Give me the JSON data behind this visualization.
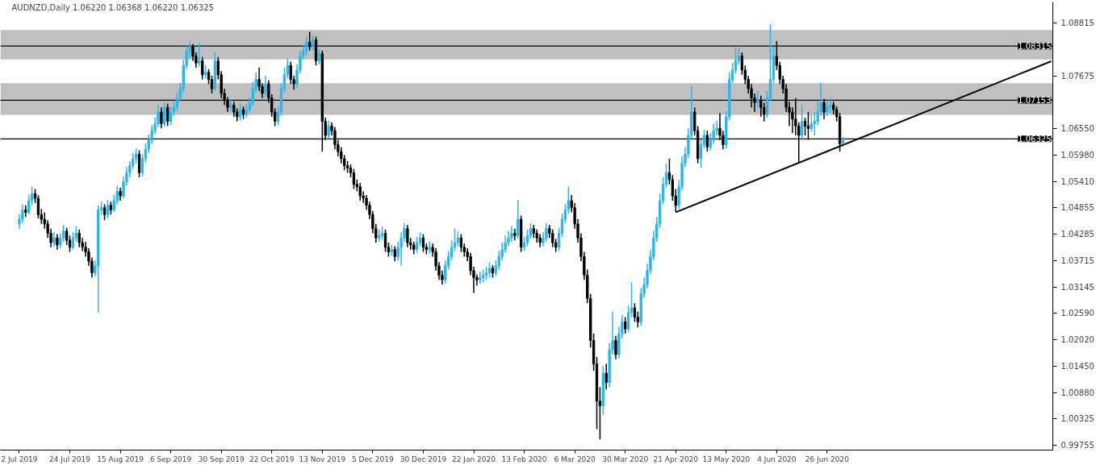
{
  "chart_data": {
    "type": "candlestick",
    "title": "AUDNZD,Daily  1.06220 1.06368 1.06220 1.06325",
    "categories": [
      "2 Jul 2019",
      null,
      null,
      null,
      null,
      null,
      null,
      null,
      null,
      null,
      null,
      null,
      null,
      null,
      null,
      null,
      "24 Jul 2019",
      null,
      null,
      null,
      null,
      null,
      null,
      null,
      null,
      null,
      null,
      null,
      null,
      null,
      null,
      null,
      "15 Aug 2019",
      null,
      null,
      null,
      null,
      null,
      null,
      null,
      null,
      null,
      null,
      null,
      null,
      null,
      null,
      null,
      "6 Sep 2019",
      null,
      null,
      null,
      null,
      null,
      null,
      null,
      null,
      null,
      null,
      null,
      null,
      null,
      null,
      null,
      "30 Sep 2019",
      null,
      null,
      null,
      null,
      null,
      null,
      null,
      null,
      null,
      null,
      null,
      null,
      null,
      null,
      null,
      "22 Oct 2019",
      null,
      null,
      null,
      null,
      null,
      null,
      null,
      null,
      null,
      null,
      null,
      null,
      null,
      null,
      null,
      "13 Nov 2019",
      null,
      null,
      null,
      null,
      null,
      null,
      null,
      null,
      null,
      null,
      null,
      null,
      null,
      null,
      null,
      "5 Dec 2019",
      null,
      null,
      null,
      null,
      null,
      null,
      null,
      null,
      null,
      null,
      null,
      null,
      null,
      null,
      null,
      "30 Dec 2019",
      null,
      null,
      null,
      null,
      null,
      null,
      null,
      null,
      null,
      null,
      null,
      null,
      null,
      null,
      null,
      "22 Jan 2020",
      null,
      null,
      null,
      null,
      null,
      null,
      null,
      null,
      null,
      null,
      null,
      null,
      null,
      null,
      null,
      "13 Feb 2020",
      null,
      null,
      null,
      null,
      null,
      null,
      null,
      null,
      null,
      null,
      null,
      null,
      null,
      null,
      null,
      "6 Mar 2020",
      null,
      null,
      null,
      null,
      null,
      null,
      null,
      null,
      null,
      null,
      null,
      null,
      null,
      null,
      null,
      "30 Mar 2020",
      null,
      null,
      null,
      null,
      null,
      null,
      null,
      null,
      null,
      null,
      null,
      null,
      null,
      null,
      null,
      "21 Apr 2020",
      null,
      null,
      null,
      null,
      null,
      null,
      null,
      null,
      null,
      null,
      null,
      null,
      null,
      null,
      null,
      "13 May 2020",
      null,
      null,
      null,
      null,
      null,
      null,
      null,
      null,
      null,
      null,
      null,
      null,
      null,
      null,
      null,
      "4 Jun 2020",
      null,
      null,
      null,
      null,
      null,
      null,
      null,
      null,
      null,
      null,
      null,
      null,
      null,
      null,
      null,
      "26 Jun 2020",
      null,
      null,
      null,
      null,
      null,
      null,
      null,
      null,
      null,
      null,
      null,
      null,
      null,
      null,
      null,
      null,
      null,
      null,
      null,
      null,
      null,
      null,
      null,
      null,
      null,
      null,
      null,
      null,
      null,
      null,
      null,
      null,
      null,
      null,
      null,
      null,
      null,
      null,
      null,
      null,
      null,
      null,
      null,
      null,
      null,
      null,
      null,
      null,
      null,
      null,
      null,
      null,
      null,
      null,
      null,
      null,
      null,
      null,
      null,
      null,
      null,
      null,
      null,
      null,
      null,
      null,
      null,
      null,
      null,
      null,
      null
    ],
    "ohlc": [
      [
        1.045,
        1.047,
        1.044,
        1.046
      ],
      [
        1.046,
        1.0492,
        1.0452,
        1.048
      ],
      [
        1.048,
        1.049,
        1.0465,
        1.0475
      ],
      [
        1.0475,
        1.0512,
        1.047,
        1.05
      ],
      [
        1.05,
        1.053,
        1.049,
        1.0515
      ],
      [
        1.0515,
        1.0525,
        1.0495,
        1.0505
      ],
      [
        1.0505,
        1.0512,
        1.0462,
        1.047
      ],
      [
        1.047,
        1.0482,
        1.045,
        1.046
      ],
      [
        1.046,
        1.0475,
        1.044,
        1.045
      ],
      [
        1.045,
        1.0458,
        1.042,
        1.043
      ],
      [
        1.043,
        1.044,
        1.04,
        1.041
      ],
      [
        1.041,
        1.0432,
        1.0402,
        1.042
      ],
      [
        1.042,
        1.0428,
        1.0395,
        1.0405
      ],
      [
        1.0405,
        1.043,
        1.0398,
        1.042
      ],
      [
        1.042,
        1.0448,
        1.0412,
        1.0435
      ],
      [
        1.0435,
        1.0442,
        1.0405,
        1.0415
      ],
      [
        1.0415,
        1.0425,
        1.039,
        1.04
      ],
      [
        1.04,
        1.0432,
        1.0395,
        1.042
      ],
      [
        1.042,
        1.0445,
        1.0412,
        1.043
      ],
      [
        1.043,
        1.0438,
        1.04,
        1.041
      ],
      [
        1.041,
        1.042,
        1.0392,
        1.04
      ],
      [
        1.04,
        1.0412,
        1.038,
        1.039
      ],
      [
        1.039,
        1.0398,
        1.036,
        1.037
      ],
      [
        1.037,
        1.0378,
        1.0335,
        1.0345
      ],
      [
        1.0345,
        1.0372,
        1.0338,
        1.036
      ],
      [
        1.036,
        1.049,
        1.026,
        1.048
      ],
      [
        1.048,
        1.0498,
        1.047,
        1.0485
      ],
      [
        1.0485,
        1.0492,
        1.0458,
        1.047
      ],
      [
        1.047,
        1.0502,
        1.0462,
        1.049
      ],
      [
        1.049,
        1.0498,
        1.047,
        1.048
      ],
      [
        1.048,
        1.0512,
        1.0475,
        1.05
      ],
      [
        1.05,
        1.0532,
        1.0492,
        1.052
      ],
      [
        1.052,
        1.0528,
        1.05,
        1.051
      ],
      [
        1.051,
        1.0552,
        1.0505,
        1.054
      ],
      [
        1.054,
        1.0572,
        1.0532,
        1.056
      ],
      [
        1.056,
        1.0585,
        1.055,
        1.0575
      ],
      [
        1.0575,
        1.0602,
        1.0568,
        1.059
      ],
      [
        1.059,
        1.0612,
        1.058,
        1.06
      ],
      [
        1.06,
        1.0608,
        1.055,
        1.056
      ],
      [
        1.056,
        1.06,
        1.0552,
        1.059
      ],
      [
        1.059,
        1.0622,
        1.0582,
        1.061
      ],
      [
        1.061,
        1.0642,
        1.0602,
        1.063
      ],
      [
        1.063,
        1.0662,
        1.0622,
        1.065
      ],
      [
        1.065,
        1.0678,
        1.0642,
        1.0665
      ],
      [
        1.0665,
        1.0705,
        1.0658,
        1.069
      ],
      [
        1.069,
        1.07,
        1.0655,
        1.0665
      ],
      [
        1.0665,
        1.0712,
        1.0658,
        1.07
      ],
      [
        1.07,
        1.0708,
        1.066,
        1.067
      ],
      [
        1.067,
        1.0702,
        1.0662,
        1.069
      ],
      [
        1.069,
        1.0712,
        1.0682,
        1.07
      ],
      [
        1.07,
        1.0732,
        1.0692,
        1.072
      ],
      [
        1.072,
        1.0752,
        1.0712,
        1.074
      ],
      [
        1.074,
        1.0802,
        1.0732,
        1.079
      ],
      [
        1.079,
        1.0832,
        1.0782,
        1.082
      ],
      [
        1.082,
        1.0842,
        1.0805,
        1.083
      ],
      [
        1.083,
        1.0836,
        1.08,
        1.081
      ],
      [
        1.081,
        1.0818,
        1.0785,
        1.0795
      ],
      [
        1.0795,
        1.0838,
        1.0788,
        1.08
      ],
      [
        1.08,
        1.0808,
        1.076,
        1.077
      ],
      [
        1.077,
        1.079,
        1.0762,
        1.0775
      ],
      [
        1.0775,
        1.0782,
        1.075,
        1.076
      ],
      [
        1.076,
        1.0768,
        1.073,
        1.074
      ],
      [
        1.074,
        1.0818,
        1.0735,
        1.08
      ],
      [
        1.08,
        1.0808,
        1.076,
        1.077
      ],
      [
        1.077,
        1.0778,
        1.072,
        1.073
      ],
      [
        1.073,
        1.074,
        1.0705,
        1.0715
      ],
      [
        1.0715,
        1.0722,
        1.069,
        1.07
      ],
      [
        1.07,
        1.0718,
        1.0692,
        1.0705
      ],
      [
        1.0705,
        1.0712,
        1.068,
        1.069
      ],
      [
        1.069,
        1.0698,
        1.067,
        1.068
      ],
      [
        1.068,
        1.0708,
        1.0672,
        1.0695
      ],
      [
        1.0695,
        1.0702,
        1.0675,
        1.0685
      ],
      [
        1.0685,
        1.0708,
        1.0678,
        1.0695
      ],
      [
        1.0695,
        1.0722,
        1.0688,
        1.071
      ],
      [
        1.071,
        1.0755,
        1.0702,
        1.074
      ],
      [
        1.074,
        1.0775,
        1.0732,
        1.076
      ],
      [
        1.076,
        1.0785,
        1.0735,
        1.0745
      ],
      [
        1.0745,
        1.0752,
        1.072,
        1.073
      ],
      [
        1.073,
        1.0768,
        1.0722,
        1.075
      ],
      [
        1.075,
        1.0758,
        1.071,
        1.072
      ],
      [
        1.072,
        1.0728,
        1.068,
        1.069
      ],
      [
        1.069,
        1.0698,
        1.066,
        1.067
      ],
      [
        1.067,
        1.0702,
        1.0662,
        1.069
      ],
      [
        1.069,
        1.0752,
        1.0682,
        1.074
      ],
      [
        1.074,
        1.0785,
        1.0732,
        1.077
      ],
      [
        1.077,
        1.0805,
        1.0762,
        1.079
      ],
      [
        1.079,
        1.0798,
        1.075,
        1.076
      ],
      [
        1.076,
        1.0768,
        1.0738,
        1.075
      ],
      [
        1.075,
        1.0792,
        1.0742,
        1.078
      ],
      [
        1.078,
        1.0822,
        1.0772,
        1.081
      ],
      [
        1.081,
        1.0832,
        1.0802,
        1.082
      ],
      [
        1.082,
        1.0852,
        1.0812,
        1.084
      ],
      [
        1.084,
        1.0862,
        1.0822,
        1.083
      ],
      [
        1.083,
        1.0855,
        1.0822,
        1.0845
      ],
      [
        1.0845,
        1.0852,
        1.079,
        1.08
      ],
      [
        1.08,
        1.0825,
        1.0792,
        1.0815
      ],
      [
        1.0815,
        1.0822,
        1.0605,
        1.067
      ],
      [
        1.067,
        1.0678,
        1.063,
        1.064
      ],
      [
        1.064,
        1.0672,
        1.0632,
        1.066
      ],
      [
        1.066,
        1.0668,
        1.064,
        1.065
      ],
      [
        1.065,
        1.0658,
        1.061,
        1.062
      ],
      [
        1.062,
        1.063,
        1.0595,
        1.0605
      ],
      [
        1.0605,
        1.0615,
        1.058,
        1.059
      ],
      [
        1.059,
        1.0598,
        1.0565,
        1.0575
      ],
      [
        1.0575,
        1.0585,
        1.056,
        1.057
      ],
      [
        1.057,
        1.0578,
        1.055,
        1.056
      ],
      [
        1.056,
        1.0568,
        1.0525,
        1.0535
      ],
      [
        1.0535,
        1.0545,
        1.052,
        1.053
      ],
      [
        1.053,
        1.0538,
        1.05,
        1.051
      ],
      [
        1.051,
        1.052,
        1.0495,
        1.0505
      ],
      [
        1.0505,
        1.0512,
        1.048,
        1.049
      ],
      [
        1.049,
        1.0498,
        1.046,
        1.047
      ],
      [
        1.047,
        1.0478,
        1.043,
        1.044
      ],
      [
        1.044,
        1.045,
        1.041,
        1.042
      ],
      [
        1.042,
        1.0438,
        1.0412,
        1.0425
      ],
      [
        1.0425,
        1.0445,
        1.0415,
        1.043
      ],
      [
        1.043,
        1.0438,
        1.039,
        1.04
      ],
      [
        1.04,
        1.041,
        1.038,
        1.039
      ],
      [
        1.039,
        1.0405,
        1.0382,
        1.0395
      ],
      [
        1.0395,
        1.0402,
        1.037,
        1.038
      ],
      [
        1.038,
        1.0412,
        1.0372,
        1.04
      ],
      [
        1.04,
        1.0432,
        1.0361,
        1.042
      ],
      [
        1.042,
        1.0452,
        1.0412,
        1.044
      ],
      [
        1.044,
        1.0448,
        1.04,
        1.041
      ],
      [
        1.041,
        1.042,
        1.0395,
        1.0405
      ],
      [
        1.0405,
        1.0412,
        1.0385,
        1.0395
      ],
      [
        1.0395,
        1.0422,
        1.0388,
        1.041
      ],
      [
        1.041,
        1.0432,
        1.0402,
        1.042
      ],
      [
        1.042,
        1.0428,
        1.039,
        1.04
      ],
      [
        1.04,
        1.0408,
        1.0385,
        1.0395
      ],
      [
        1.0395,
        1.0412,
        1.0388,
        1.04
      ],
      [
        1.04,
        1.0408,
        1.038,
        1.039
      ],
      [
        1.039,
        1.0398,
        1.035,
        1.036
      ],
      [
        1.036,
        1.0368,
        1.033,
        1.034
      ],
      [
        1.034,
        1.035,
        1.032,
        1.033
      ],
      [
        1.033,
        1.0372,
        1.0322,
        1.036
      ],
      [
        1.036,
        1.0392,
        1.0352,
        1.038
      ],
      [
        1.038,
        1.0415,
        1.0372,
        1.04
      ],
      [
        1.04,
        1.044,
        1.0392,
        1.041
      ],
      [
        1.041,
        1.0435,
        1.0402,
        1.042
      ],
      [
        1.042,
        1.0428,
        1.039,
        1.04
      ],
      [
        1.04,
        1.0408,
        1.038,
        1.039
      ],
      [
        1.039,
        1.0398,
        1.037,
        1.038
      ],
      [
        1.038,
        1.0388,
        1.034,
        1.035
      ],
      [
        1.035,
        1.0358,
        1.0302,
        1.0335
      ],
      [
        1.0335,
        1.0342,
        1.0318,
        1.033
      ],
      [
        1.033,
        1.0348,
        1.0322,
        1.0335
      ],
      [
        1.0335,
        1.0352,
        1.0325,
        1.034
      ],
      [
        1.034,
        1.0358,
        1.033,
        1.0345
      ],
      [
        1.0345,
        1.0368,
        1.0335,
        1.0355
      ],
      [
        1.0355,
        1.0362,
        1.0335,
        1.0345
      ],
      [
        1.0345,
        1.0372,
        1.0338,
        1.036
      ],
      [
        1.036,
        1.0392,
        1.0352,
        1.038
      ],
      [
        1.038,
        1.041,
        1.0372,
        1.0395
      ],
      [
        1.0395,
        1.0425,
        1.0388,
        1.041
      ],
      [
        1.041,
        1.0435,
        1.0402,
        1.042
      ],
      [
        1.042,
        1.0445,
        1.0412,
        1.043
      ],
      [
        1.043,
        1.044,
        1.0415,
        1.0425
      ],
      [
        1.0425,
        1.0501,
        1.0418,
        1.046
      ],
      [
        1.046,
        1.0468,
        1.039,
        1.04
      ],
      [
        1.04,
        1.0422,
        1.0392,
        1.041
      ],
      [
        1.041,
        1.0438,
        1.0402,
        1.0425
      ],
      [
        1.0425,
        1.0452,
        1.0418,
        1.044
      ],
      [
        1.044,
        1.0448,
        1.042,
        1.043
      ],
      [
        1.043,
        1.0438,
        1.041,
        1.042
      ],
      [
        1.042,
        1.0428,
        1.04,
        1.041
      ],
      [
        1.041,
        1.0432,
        1.0402,
        1.042
      ],
      [
        1.042,
        1.0452,
        1.0412,
        1.044
      ],
      [
        1.044,
        1.0448,
        1.042,
        1.043
      ],
      [
        1.043,
        1.0438,
        1.04,
        1.041
      ],
      [
        1.041,
        1.0418,
        1.039,
        1.04
      ],
      [
        1.04,
        1.0442,
        1.0392,
        1.043
      ],
      [
        1.043,
        1.0472,
        1.0422,
        1.046
      ],
      [
        1.046,
        1.0492,
        1.0452,
        1.048
      ],
      [
        1.048,
        1.053,
        1.0472,
        1.05
      ],
      [
        1.05,
        1.0512,
        1.0475,
        1.0485
      ],
      [
        1.0485,
        1.0495,
        1.044,
        1.045
      ],
      [
        1.045,
        1.046,
        1.041,
        1.042
      ],
      [
        1.042,
        1.043,
        1.037,
        1.038
      ],
      [
        1.038,
        1.039,
        1.033,
        1.034
      ],
      [
        1.034,
        1.0352,
        1.028,
        1.029
      ],
      [
        1.029,
        1.03,
        1.0185,
        1.02
      ],
      [
        1.02,
        1.0215,
        1.0135,
        1.015
      ],
      [
        1.015,
        1.0165,
        1.001,
        1.007
      ],
      [
        1.007,
        1.01,
        0.9988,
        1.006
      ],
      [
        1.006,
        1.0145,
        1.004,
        1.013
      ],
      [
        1.013,
        1.015,
        1.0095,
        1.011
      ],
      [
        1.011,
        1.0195,
        1.01,
        1.018
      ],
      [
        1.018,
        1.0262,
        1.017,
        1.02
      ],
      [
        1.02,
        1.021,
        1.016,
        1.017
      ],
      [
        1.017,
        1.023,
        1.0162,
        1.0215
      ],
      [
        1.0215,
        1.0255,
        1.0205,
        1.024
      ],
      [
        1.024,
        1.025,
        1.0215,
        1.0225
      ],
      [
        1.0225,
        1.0275,
        1.0218,
        1.026
      ],
      [
        1.026,
        1.0325,
        1.025,
        1.027
      ],
      [
        1.027,
        1.028,
        1.024,
        1.025
      ],
      [
        1.025,
        1.0262,
        1.0228,
        1.024
      ],
      [
        1.024,
        1.0312,
        1.0232,
        1.03
      ],
      [
        1.03,
        1.0335,
        1.0292,
        1.032
      ],
      [
        1.032,
        1.0365,
        1.0312,
        1.035
      ],
      [
        1.035,
        1.0395,
        1.0342,
        1.038
      ],
      [
        1.038,
        1.0435,
        1.0372,
        1.042
      ],
      [
        1.042,
        1.0465,
        1.0412,
        1.045
      ],
      [
        1.045,
        1.0515,
        1.0442,
        1.05
      ],
      [
        1.05,
        1.055,
        1.0492,
        1.0535
      ],
      [
        1.0535,
        1.058,
        1.0528,
        1.056
      ],
      [
        1.056,
        1.059,
        1.0535,
        1.0545
      ],
      [
        1.0545,
        1.0555,
        1.05,
        1.051
      ],
      [
        1.051,
        1.0525,
        1.0475,
        1.049
      ],
      [
        1.049,
        1.0545,
        1.0482,
        1.053
      ],
      [
        1.053,
        1.0595,
        1.0522,
        1.058
      ],
      [
        1.058,
        1.0615,
        1.0572,
        1.06
      ],
      [
        1.06,
        1.0655,
        1.0592,
        1.064
      ],
      [
        1.064,
        1.0746,
        1.0632,
        1.069
      ],
      [
        1.069,
        1.07,
        1.064,
        1.065
      ],
      [
        1.065,
        1.066,
        1.058,
        1.059
      ],
      [
        1.059,
        1.0632,
        1.057,
        1.062
      ],
      [
        1.062,
        1.0652,
        1.0612,
        1.064
      ],
      [
        1.064,
        1.065,
        1.0605,
        1.0615
      ],
      [
        1.0615,
        1.0645,
        1.0608,
        1.063
      ],
      [
        1.063,
        1.0665,
        1.0622,
        1.065
      ],
      [
        1.065,
        1.0672,
        1.064,
        1.0655
      ],
      [
        1.0655,
        1.0688,
        1.063,
        1.064
      ],
      [
        1.064,
        1.065,
        1.061,
        1.062
      ],
      [
        1.062,
        1.0692,
        1.0612,
        1.068
      ],
      [
        1.068,
        1.0775,
        1.0672,
        1.076
      ],
      [
        1.076,
        1.0795,
        1.0752,
        1.078
      ],
      [
        1.078,
        1.0828,
        1.0772,
        1.08
      ],
      [
        1.08,
        1.0828,
        1.0792,
        1.081
      ],
      [
        1.081,
        1.0818,
        1.077,
        1.078
      ],
      [
        1.078,
        1.079,
        1.075,
        1.076
      ],
      [
        1.076,
        1.0768,
        1.073,
        1.074
      ],
      [
        1.074,
        1.075,
        1.07,
        1.072
      ],
      [
        1.072,
        1.073,
        1.069,
        1.071
      ],
      [
        1.071,
        1.0735,
        1.07,
        1.0715
      ],
      [
        1.0715,
        1.0725,
        1.068,
        1.07
      ],
      [
        1.07,
        1.071,
        1.067,
        1.0685
      ],
      [
        1.0685,
        1.0735,
        1.0678,
        1.072
      ],
      [
        1.072,
        1.0879,
        1.0712,
        1.076
      ],
      [
        1.076,
        1.083,
        1.0752,
        1.081
      ],
      [
        1.081,
        1.0842,
        1.078,
        1.079
      ],
      [
        1.079,
        1.0798,
        1.075,
        1.076
      ],
      [
        1.076,
        1.0768,
        1.073,
        1.074
      ],
      [
        1.074,
        1.075,
        1.069,
        1.07
      ],
      [
        1.07,
        1.0712,
        1.066,
        1.069
      ],
      [
        1.069,
        1.07,
        1.0645,
        1.0675
      ],
      [
        1.0675,
        1.072,
        1.064,
        1.066
      ],
      [
        1.066,
        1.0668,
        1.0581,
        1.064
      ],
      [
        1.064,
        1.0705,
        1.0632,
        1.067
      ],
      [
        1.067,
        1.0678,
        1.064,
        1.066
      ],
      [
        1.066,
        1.069,
        1.063,
        1.0655
      ],
      [
        1.0655,
        1.0685,
        1.0648,
        1.0665
      ],
      [
        1.0665,
        1.069,
        1.064,
        1.067
      ],
      [
        1.067,
        1.0712,
        1.0662,
        1.069
      ],
      [
        1.069,
        1.0753,
        1.0682,
        1.071
      ],
      [
        1.071,
        1.0718,
        1.0675,
        1.069
      ],
      [
        1.069,
        1.0715,
        1.0682,
        1.07
      ],
      [
        1.07,
        1.072,
        1.0688,
        1.0705
      ],
      [
        1.0705,
        1.0712,
        1.0685,
        1.0695
      ],
      [
        1.0695,
        1.0702,
        1.067,
        1.068
      ],
      [
        1.068,
        1.0688,
        1.0605,
        1.0622
      ],
      [
        1.0622,
        1.06368,
        1.0622,
        1.06325
      ],
      null,
      null,
      null,
      null,
      null,
      null,
      null,
      null,
      null,
      null,
      null,
      null,
      null,
      null,
      null,
      null,
      null,
      null,
      null,
      null,
      null,
      null,
      null,
      null,
      null,
      null,
      null,
      null,
      null,
      null,
      null,
      null,
      null,
      null,
      null,
      null,
      null,
      null,
      null,
      null,
      null,
      null,
      null,
      null,
      null,
      null,
      null,
      null,
      null,
      null,
      null,
      null,
      null,
      null,
      null,
      null,
      null,
      null,
      null,
      null,
      null,
      null,
      null,
      null,
      null,
      null
    ],
    "series": [
      {
        "type": "line",
        "values": [
          null,
          null,
          null,
          null,
          null,
          null,
          null,
          null,
          null,
          null,
          null,
          null,
          null,
          null,
          null,
          null,
          null,
          null,
          null,
          null,
          null,
          null,
          null,
          null,
          null,
          null,
          null,
          null,
          null,
          null,
          null,
          null,
          null,
          null,
          null,
          null,
          null,
          null,
          null,
          null,
          null,
          null,
          null,
          null,
          null,
          null,
          null,
          null,
          null,
          null,
          null,
          null,
          null,
          null,
          null,
          null,
          null,
          null,
          null,
          null,
          null,
          null,
          null,
          null,
          null,
          null,
          null,
          null,
          null,
          null,
          null,
          null,
          null,
          null,
          null,
          null,
          null,
          null,
          null,
          null,
          null,
          null,
          null,
          null,
          null,
          null,
          null,
          null,
          null,
          null,
          null,
          null,
          null,
          null,
          null,
          null,
          null,
          null,
          null,
          null,
          null,
          null,
          null,
          null,
          null,
          null,
          null,
          null,
          null,
          null,
          null,
          null,
          null,
          null,
          null,
          null,
          null,
          null,
          null,
          null,
          null,
          null,
          null,
          null,
          null,
          null,
          null,
          null,
          null,
          null,
          null,
          null,
          null,
          null,
          null,
          null,
          null,
          null,
          null,
          null,
          null,
          null,
          null,
          null,
          null,
          null,
          null,
          null,
          null,
          null,
          null,
          null,
          null,
          null,
          null,
          null,
          null,
          null,
          null,
          null,
          null,
          null,
          null,
          null,
          null,
          null,
          null,
          null,
          null,
          null,
          null,
          null,
          null,
          null,
          null,
          null,
          null,
          null,
          null,
          null,
          null,
          null,
          null,
          null,
          null,
          null,
          null,
          null,
          null,
          null,
          null,
          null,
          null,
          null,
          null,
          null,
          null,
          null,
          null,
          null,
          null,
          null,
          null,
          null,
          null,
          null,
          null,
          null,
          1.0475,
          null,
          null,
          null,
          null,
          null,
          null,
          null,
          null,
          null,
          null,
          null,
          null,
          null,
          null,
          null,
          null,
          null,
          null,
          null,
          null,
          null,
          null,
          null,
          null,
          null,
          null,
          null,
          null,
          null,
          null,
          null,
          null,
          null,
          null,
          null,
          null,
          null,
          null,
          null,
          null,
          null,
          null,
          null,
          null,
          null,
          null,
          null,
          null,
          null,
          null,
          null,
          null,
          null,
          null,
          null,
          null,
          null,
          null,
          null,
          null,
          null,
          null,
          null,
          null,
          null,
          null,
          null,
          null,
          null,
          null,
          null,
          null,
          null,
          null,
          null,
          null,
          null,
          null,
          null,
          null,
          null,
          null,
          null,
          null,
          null,
          null,
          null,
          null,
          null,
          null,
          null,
          null,
          null,
          null,
          null,
          null,
          null,
          null,
          null,
          null,
          null,
          null,
          null,
          null,
          null,
          null,
          null,
          null,
          null,
          null,
          null,
          null,
          null,
          null,
          null,
          null,
          null,
          null,
          1.0799
        ],
        "color": "#000000"
      }
    ],
    "ylim": [
      0.9965,
      1.0926
    ],
    "yticks": [
      {
        "value": 1.08815,
        "label": "1.08815"
      },
      {
        "value": 1.07675,
        "label": "1.07675"
      },
      {
        "value": 1.0655,
        "label": "1.06550"
      },
      {
        "value": 1.0598,
        "label": "1.05980"
      },
      {
        "value": 1.0541,
        "label": "1.05410"
      },
      {
        "value": 1.04855,
        "label": "1.04855"
      },
      {
        "value": 1.04285,
        "label": "1.04285"
      },
      {
        "value": 1.03715,
        "label": "1.03715"
      },
      {
        "value": 1.03145,
        "label": "1.03145"
      },
      {
        "value": 1.0259,
        "label": "1.02590"
      },
      {
        "value": 1.0202,
        "label": "1.02020"
      },
      {
        "value": 1.0145,
        "label": "1.01450"
      },
      {
        "value": 1.0088,
        "label": "1.00880"
      },
      {
        "value": 1.00325,
        "label": "1.00325"
      },
      {
        "value": 0.99755,
        "label": "0.99755"
      }
    ],
    "ref_lines": [
      {
        "axis": "y",
        "value": 1.08315,
        "label": "1.08315",
        "color": "#000000"
      },
      {
        "axis": "y",
        "value": 1.07153,
        "label": "1.07153",
        "color": "#000000"
      },
      {
        "axis": "y",
        "value": 1.06325,
        "label": "1.06325",
        "color": "#000000"
      }
    ],
    "bands": [
      {
        "axis": "y",
        "from": 1.0803,
        "to": 1.0866,
        "label": null,
        "color": "#c0c0c0"
      },
      {
        "axis": "y",
        "from": 1.0684,
        "to": 1.0752,
        "label": null,
        "color": "#c0c0c0"
      }
    ],
    "grid": false
  }
}
